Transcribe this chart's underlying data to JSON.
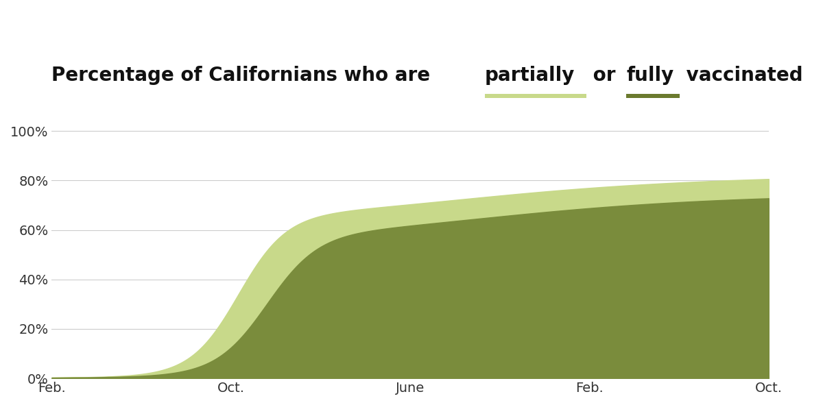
{
  "color_partial": "#c8d98a",
  "color_full": "#7a8c3c",
  "background_color": "#ffffff",
  "yticks": [
    0,
    20,
    40,
    60,
    80,
    100
  ],
  "ytick_labels": [
    "0%",
    "20%",
    "40%",
    "60%",
    "80%",
    "100%"
  ],
  "xtick_labels": [
    "Feb.",
    "Oct.",
    "June",
    "Feb.",
    "Oct."
  ],
  "ylim": [
    0,
    105
  ],
  "final_partial": 80.6,
  "final_full": 72.8,
  "grid_color": "#cccccc",
  "title_fontsize": 20,
  "tick_fontsize": 14,
  "title_color": "#111111",
  "prefix": "Percentage of Californians who are ",
  "word_partial": "partially",
  "middle": " or ",
  "word_full": "fully",
  "suffix": " vaccinated",
  "underline_color_partial": "#c8d98a",
  "underline_color_full": "#6b7a2e"
}
